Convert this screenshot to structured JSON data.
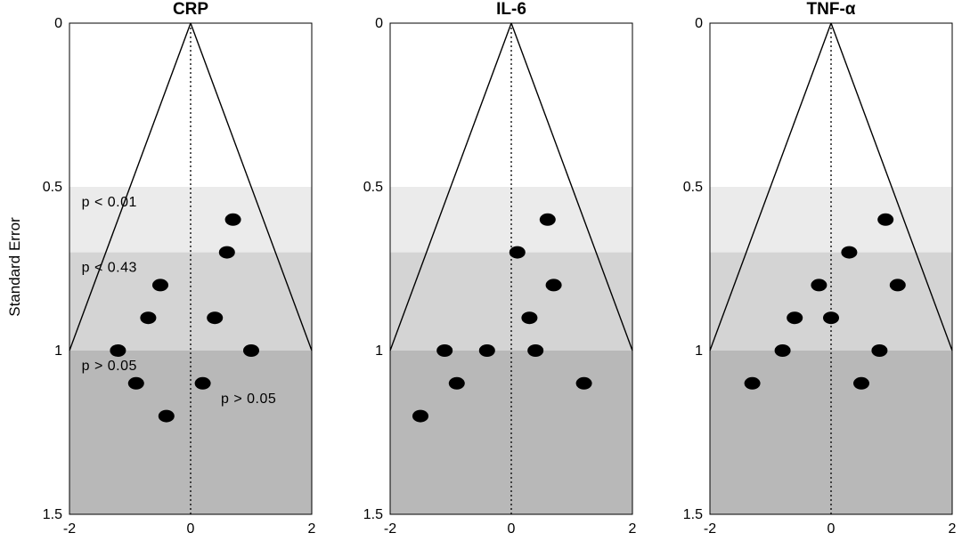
{
  "chart_data": {
    "type": "scatter",
    "ylabel": "Standard Error",
    "xlim": [
      -2,
      2
    ],
    "ylim": [
      0,
      1.5
    ],
    "y_reversed": true,
    "xticks": [
      -2,
      0,
      2
    ],
    "yticks": [
      0,
      0.5,
      1,
      1.5
    ],
    "ytick_labels": [
      "0",
      "0.5",
      "1",
      "1.5"
    ],
    "xtick_labels": [
      "-2",
      "0",
      "2"
    ],
    "bands": [
      {
        "from": 0.5,
        "to": 0.7,
        "color": "#ebebeb"
      },
      {
        "from": 0.7,
        "to": 1.0,
        "color": "#d4d4d4"
      },
      {
        "from": 1.0,
        "to": 1.5,
        "color": "#b8b8b8"
      }
    ],
    "panels": [
      {
        "title": "CRP",
        "points": [
          {
            "x": 0.7,
            "y": 0.6
          },
          {
            "x": 0.6,
            "y": 0.7
          },
          {
            "x": -0.5,
            "y": 0.8
          },
          {
            "x": -0.7,
            "y": 0.9
          },
          {
            "x": 0.4,
            "y": 0.9
          },
          {
            "x": -1.2,
            "y": 1.0
          },
          {
            "x": 1.0,
            "y": 1.0
          },
          {
            "x": -0.9,
            "y": 1.1
          },
          {
            "x": 0.2,
            "y": 1.1
          },
          {
            "x": -0.4,
            "y": 1.2
          }
        ],
        "annotations": [
          {
            "text": "p < 0.01",
            "x": -1.8,
            "y": 0.56
          },
          {
            "text": "p < 0.43",
            "x": -1.8,
            "y": 0.76
          },
          {
            "text": "p > 0.05",
            "x": -1.8,
            "y": 1.06
          },
          {
            "text": "p > 0.05",
            "x": 0.5,
            "y": 1.16
          }
        ]
      },
      {
        "title": "IL-6",
        "points": [
          {
            "x": 0.6,
            "y": 0.6
          },
          {
            "x": 0.1,
            "y": 0.7
          },
          {
            "x": 0.7,
            "y": 0.8
          },
          {
            "x": 0.3,
            "y": 0.9
          },
          {
            "x": -1.1,
            "y": 1.0
          },
          {
            "x": -0.4,
            "y": 1.0
          },
          {
            "x": 0.4,
            "y": 1.0
          },
          {
            "x": -0.9,
            "y": 1.1
          },
          {
            "x": 1.2,
            "y": 1.1
          },
          {
            "x": -1.5,
            "y": 1.2
          }
        ],
        "annotations": []
      },
      {
        "title": "TNF-α",
        "points": [
          {
            "x": 0.9,
            "y": 0.6
          },
          {
            "x": 0.3,
            "y": 0.7
          },
          {
            "x": -0.2,
            "y": 0.8
          },
          {
            "x": 1.1,
            "y": 0.8
          },
          {
            "x": -0.6,
            "y": 0.9
          },
          {
            "x": 0.0,
            "y": 0.9
          },
          {
            "x": -0.8,
            "y": 1.0
          },
          {
            "x": 0.8,
            "y": 1.0
          },
          {
            "x": -1.3,
            "y": 1.1
          },
          {
            "x": 0.5,
            "y": 1.1
          }
        ],
        "annotations": []
      }
    ]
  }
}
